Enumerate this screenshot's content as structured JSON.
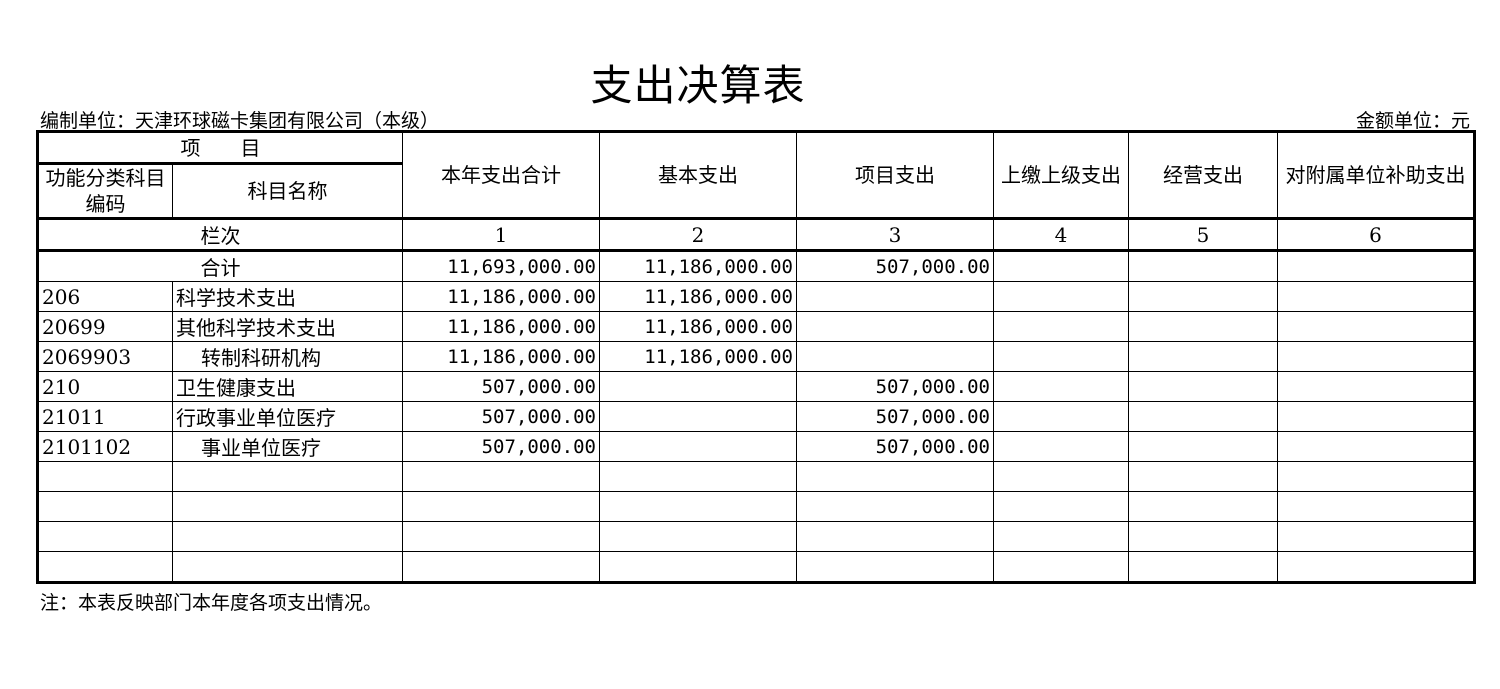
{
  "title": "支出决算表",
  "unit_label": "编制单位：天津环球磁卡集团有限公司（本级）",
  "money_unit": "金额单位：元",
  "headers": {
    "item": "项　　目",
    "code": "功能分类科目编码",
    "name": "科目名称",
    "cols": [
      "本年支出合计",
      "基本支出",
      "项目支出",
      "上缴上级支出",
      "经营支出",
      "对附属单位补助支出"
    ]
  },
  "index_row": {
    "label": "栏次",
    "nums": [
      "1",
      "2",
      "3",
      "4",
      "5",
      "6"
    ]
  },
  "total_row": {
    "label": "合计",
    "values": [
      "11,693,000.00",
      "11,186,000.00",
      "507,000.00",
      "",
      "",
      ""
    ]
  },
  "rows": [
    {
      "code": "206",
      "name": "科学技术支出",
      "values": [
        "11,186,000.00",
        "11,186,000.00",
        "",
        "",
        "",
        ""
      ]
    },
    {
      "code": "20699",
      "name": "其他科学技术支出",
      "values": [
        "11,186,000.00",
        "11,186,000.00",
        "",
        "",
        "",
        ""
      ]
    },
    {
      "code": "2069903",
      "name": "转制科研机构",
      "values": [
        "11,186,000.00",
        "11,186,000.00",
        "",
        "",
        "",
        ""
      ]
    },
    {
      "code": "210",
      "name": "卫生健康支出",
      "values": [
        "507,000.00",
        "",
        "507,000.00",
        "",
        "",
        ""
      ]
    },
    {
      "code": "21011",
      "name": "行政事业单位医疗",
      "values": [
        "507,000.00",
        "",
        "507,000.00",
        "",
        "",
        ""
      ]
    },
    {
      "code": "2101102",
      "name": "事业单位医疗",
      "values": [
        "507,000.00",
        "",
        "507,000.00",
        "",
        "",
        ""
      ]
    }
  ],
  "note": "注：本表反映部门本年度各项支出情况。"
}
